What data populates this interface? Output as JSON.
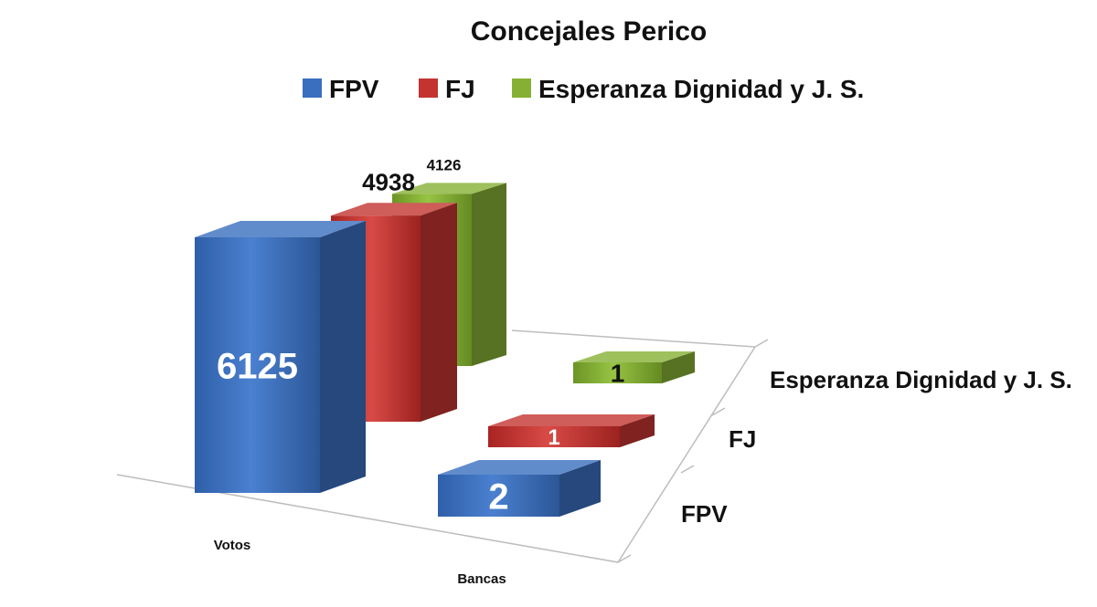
{
  "chart_data": {
    "type": "bar",
    "title": "Concejales Perico",
    "categories": [
      "Votos",
      "Bancas"
    ],
    "series": [
      {
        "name": "FPV",
        "values": [
          6125,
          2
        ],
        "color": "#3a6fbf"
      },
      {
        "name": "FJ",
        "values": [
          4938,
          1
        ],
        "color": "#c33431"
      },
      {
        "name": "Esperanza Dignidad y J. S.",
        "values": [
          4126,
          1
        ],
        "color": "#86b034"
      }
    ],
    "depth_axis_labels": [
      "Esperanza Dignidad y J. S.",
      "FJ",
      "FPV"
    ],
    "legend_position": "top",
    "grid": false,
    "note": "3D column chart; Votos and Bancas use independent vertical scales"
  }
}
